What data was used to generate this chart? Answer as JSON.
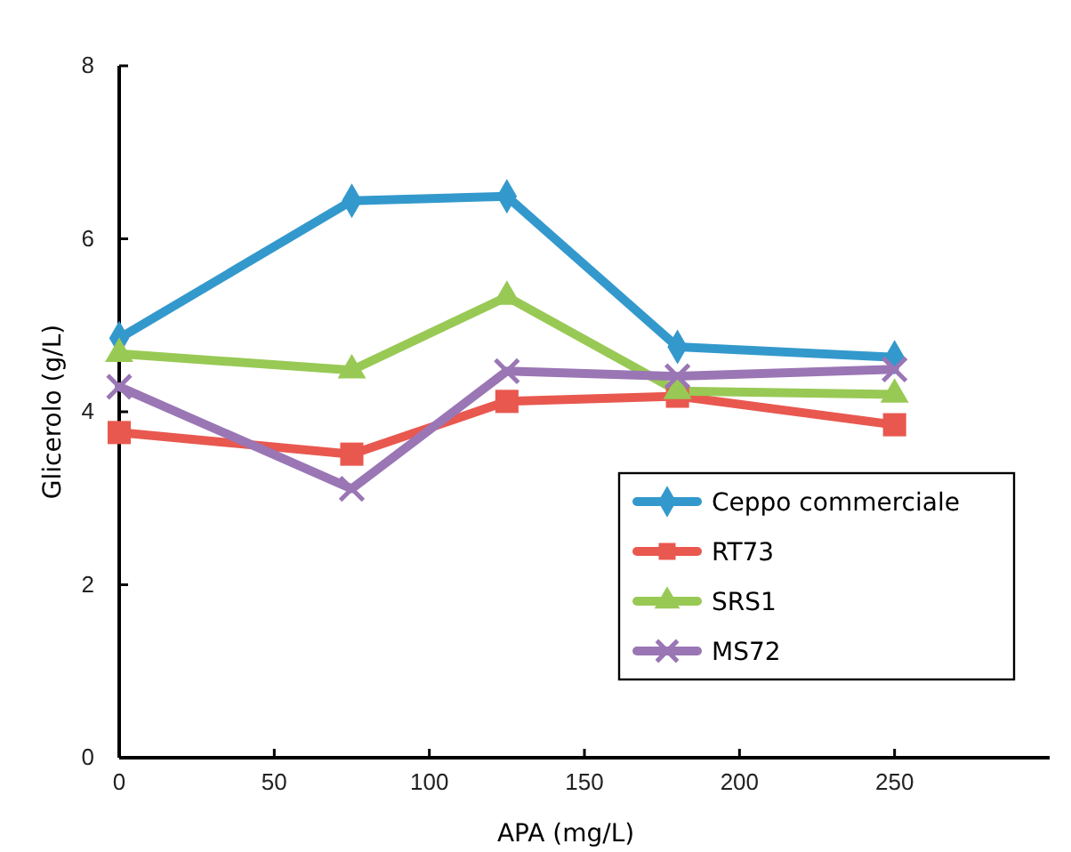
{
  "chart_data": {
    "type": "line",
    "xlabel": "APA (mg/L)",
    "ylabel": "Glicerolo (g/L)",
    "x": [
      0,
      75,
      125,
      180,
      250
    ],
    "xlim": [
      0,
      300
    ],
    "xticks": [
      0,
      50,
      100,
      150,
      200,
      250
    ],
    "ylim": [
      0,
      8
    ],
    "yticks": [
      0,
      2,
      4,
      6,
      8
    ],
    "grid": false,
    "legend": "right",
    "line_style": "solid",
    "series": [
      {
        "name": "Ceppo commerciale",
        "color": "#3399cc",
        "marker": "diamond",
        "values": [
          4.85,
          6.44,
          6.49,
          4.75,
          4.63
        ]
      },
      {
        "name": "RT73",
        "color": "#e8584f",
        "marker": "square",
        "values": [
          3.76,
          3.51,
          4.12,
          4.18,
          3.85
        ]
      },
      {
        "name": "SRS1",
        "color": "#99c955",
        "marker": "triangle",
        "values": [
          4.67,
          4.48,
          5.33,
          4.24,
          4.2
        ]
      },
      {
        "name": "MS72",
        "color": "#9a76b5",
        "marker": "cross",
        "values": [
          4.29,
          3.11,
          4.47,
          4.41,
          4.49
        ]
      }
    ]
  }
}
